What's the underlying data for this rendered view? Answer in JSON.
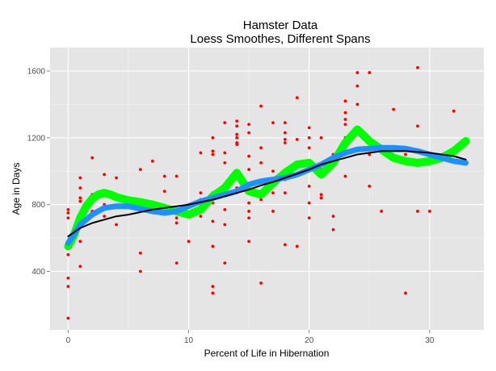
{
  "chart_data": {
    "type": "scatter",
    "title": "Hamster Data",
    "subtitle": "Loess Smoothes, Different Spans",
    "xlabel": "Percent of Life in Hibernation",
    "ylabel": "Age in Days",
    "xlim": [
      -1.5,
      34.5
    ],
    "ylim": [
      50,
      1740
    ],
    "x_ticks": [
      0,
      10,
      20,
      30
    ],
    "y_ticks": [
      400,
      800,
      1200,
      1600
    ],
    "x_tick_labels": [
      "0",
      "10",
      "20",
      "30"
    ],
    "y_tick_labels": [
      "400",
      "800",
      "1200",
      "1600"
    ],
    "grid": true,
    "legend": "none",
    "colors": {
      "panel_bg": "#e5e5e5",
      "grid_major": "#ffffff",
      "grid_minor": "#f2f2f2",
      "points": "#ff0000",
      "smooth_narrow": "#00ff00",
      "smooth_medium": "#1e90ff",
      "smooth_wide": "#000000"
    },
    "points": [
      [
        0,
        120
      ],
      [
        0,
        310
      ],
      [
        0,
        360
      ],
      [
        0,
        500
      ],
      [
        0,
        540
      ],
      [
        0,
        580
      ],
      [
        0,
        720
      ],
      [
        0,
        750
      ],
      [
        0,
        770
      ],
      [
        1,
        430
      ],
      [
        1,
        580
      ],
      [
        1,
        700
      ],
      [
        1,
        730
      ],
      [
        1,
        820
      ],
      [
        1,
        840
      ],
      [
        1,
        900
      ],
      [
        1,
        960
      ],
      [
        2,
        760
      ],
      [
        2,
        820
      ],
      [
        2,
        840
      ],
      [
        2,
        860
      ],
      [
        2,
        1080
      ],
      [
        3,
        730
      ],
      [
        3,
        800
      ],
      [
        3,
        980
      ],
      [
        4,
        680
      ],
      [
        4,
        960
      ],
      [
        6,
        400
      ],
      [
        6,
        510
      ],
      [
        6,
        1010
      ],
      [
        7,
        1060
      ],
      [
        8,
        880
      ],
      [
        8,
        970
      ],
      [
        9,
        450
      ],
      [
        9,
        690
      ],
      [
        9,
        720
      ],
      [
        9,
        970
      ],
      [
        10,
        580
      ],
      [
        10,
        750
      ],
      [
        10,
        800
      ],
      [
        11,
        730
      ],
      [
        11,
        830
      ],
      [
        11,
        870
      ],
      [
        11,
        1110
      ],
      [
        12,
        270
      ],
      [
        12,
        310
      ],
      [
        12,
        550
      ],
      [
        12,
        700
      ],
      [
        12,
        810
      ],
      [
        12,
        870
      ],
      [
        12,
        1100
      ],
      [
        12,
        1120
      ],
      [
        12,
        1200
      ],
      [
        13,
        450
      ],
      [
        13,
        680
      ],
      [
        13,
        770
      ],
      [
        13,
        1050
      ],
      [
        13,
        1110
      ],
      [
        13,
        1290
      ],
      [
        14,
        900
      ],
      [
        14,
        1160
      ],
      [
        14,
        1170
      ],
      [
        14,
        1200
      ],
      [
        14,
        1220
      ],
      [
        14,
        1270
      ],
      [
        14,
        1300
      ],
      [
        15,
        580
      ],
      [
        15,
        720
      ],
      [
        15,
        760
      ],
      [
        15,
        810
      ],
      [
        15,
        1010
      ],
      [
        15,
        1090
      ],
      [
        15,
        1230
      ],
      [
        15,
        1280
      ],
      [
        16,
        330
      ],
      [
        16,
        830
      ],
      [
        16,
        1050
      ],
      [
        16,
        1140
      ],
      [
        16,
        1390
      ],
      [
        17,
        760
      ],
      [
        17,
        870
      ],
      [
        17,
        1000
      ],
      [
        17,
        1290
      ],
      [
        18,
        560
      ],
      [
        18,
        870
      ],
      [
        18,
        950
      ],
      [
        18,
        1000
      ],
      [
        18,
        1170
      ],
      [
        18,
        1190
      ],
      [
        18,
        1230
      ],
      [
        18,
        1290
      ],
      [
        19,
        550
      ],
      [
        19,
        1190
      ],
      [
        19,
        1440
      ],
      [
        20,
        720
      ],
      [
        20,
        810
      ],
      [
        20,
        910
      ],
      [
        20,
        1030
      ],
      [
        20,
        1140
      ],
      [
        20,
        1200
      ],
      [
        20,
        1260
      ],
      [
        21,
        840
      ],
      [
        21,
        860
      ],
      [
        21,
        1010
      ],
      [
        21,
        1200
      ],
      [
        22,
        650
      ],
      [
        22,
        730
      ],
      [
        22,
        1100
      ],
      [
        23,
        970
      ],
      [
        23,
        1100
      ],
      [
        23,
        1200
      ],
      [
        23,
        1280
      ],
      [
        23,
        1310
      ],
      [
        23,
        1350
      ],
      [
        23,
        1420
      ],
      [
        24,
        1400
      ],
      [
        24,
        1510
      ],
      [
        24,
        1590
      ],
      [
        25,
        910
      ],
      [
        25,
        1100
      ],
      [
        25,
        1590
      ],
      [
        26,
        760
      ],
      [
        27,
        1370
      ],
      [
        28,
        270
      ],
      [
        28,
        1100
      ],
      [
        29,
        760
      ],
      [
        29,
        1270
      ],
      [
        29,
        1620
      ],
      [
        30,
        760
      ],
      [
        32,
        1360
      ]
    ],
    "series": [
      {
        "values": [
          [
            0,
            550
          ],
          [
            0.5,
            620
          ],
          [
            1,
            720
          ],
          [
            1.5,
            790
          ],
          [
            2,
            835
          ],
          [
            2.5,
            860
          ],
          [
            3,
            870
          ],
          [
            3.5,
            860
          ],
          [
            4,
            845
          ],
          [
            5,
            825
          ],
          [
            6,
            815
          ],
          [
            7,
            800
          ],
          [
            8,
            780
          ],
          [
            9,
            760
          ],
          [
            10,
            740
          ],
          [
            11,
            770
          ],
          [
            12,
            850
          ],
          [
            13,
            900
          ],
          [
            14,
            990
          ],
          [
            15,
            880
          ],
          [
            16,
            860
          ],
          [
            17,
            930
          ],
          [
            18,
            990
          ],
          [
            19,
            1040
          ],
          [
            20,
            1050
          ],
          [
            21,
            980
          ],
          [
            22,
            1050
          ],
          [
            23,
            1170
          ],
          [
            24,
            1250
          ],
          [
            25,
            1180
          ],
          [
            26,
            1130
          ],
          [
            27,
            1080
          ],
          [
            28,
            1060
          ],
          [
            29,
            1050
          ],
          [
            30,
            1060
          ],
          [
            31,
            1080
          ],
          [
            32,
            1120
          ],
          [
            33,
            1180
          ]
        ]
      },
      {
        "values": [
          [
            0,
            570
          ],
          [
            1,
            680
          ],
          [
            2,
            740
          ],
          [
            3,
            780
          ],
          [
            4,
            790
          ],
          [
            5,
            790
          ],
          [
            6,
            775
          ],
          [
            7,
            760
          ],
          [
            8,
            750
          ],
          [
            9,
            760
          ],
          [
            10,
            790
          ],
          [
            11,
            820
          ],
          [
            12,
            840
          ],
          [
            13,
            860
          ],
          [
            14,
            880
          ],
          [
            15,
            920
          ],
          [
            16,
            940
          ],
          [
            17,
            950
          ],
          [
            18,
            960
          ],
          [
            19,
            980
          ],
          [
            20,
            1010
          ],
          [
            21,
            1040
          ],
          [
            22,
            1080
          ],
          [
            23,
            1110
          ],
          [
            24,
            1130
          ],
          [
            25,
            1135
          ],
          [
            26,
            1140
          ],
          [
            27,
            1140
          ],
          [
            28,
            1135
          ],
          [
            29,
            1120
          ],
          [
            30,
            1100
          ],
          [
            31,
            1080
          ],
          [
            32,
            1060
          ],
          [
            33,
            1050
          ]
        ]
      },
      {
        "values": [
          [
            0,
            610
          ],
          [
            1,
            660
          ],
          [
            2,
            690
          ],
          [
            3,
            710
          ],
          [
            4,
            730
          ],
          [
            5,
            740
          ],
          [
            6,
            755
          ],
          [
            7,
            770
          ],
          [
            8,
            780
          ],
          [
            9,
            790
          ],
          [
            10,
            800
          ],
          [
            11,
            815
          ],
          [
            12,
            830
          ],
          [
            13,
            850
          ],
          [
            14,
            870
          ],
          [
            15,
            890
          ],
          [
            16,
            915
          ],
          [
            17,
            935
          ],
          [
            18,
            960
          ],
          [
            19,
            985
          ],
          [
            20,
            1010
          ],
          [
            21,
            1040
          ],
          [
            22,
            1060
          ],
          [
            23,
            1080
          ],
          [
            24,
            1100
          ],
          [
            25,
            1110
          ],
          [
            26,
            1120
          ],
          [
            27,
            1120
          ],
          [
            28,
            1120
          ],
          [
            29,
            1115
          ],
          [
            30,
            1110
          ],
          [
            31,
            1100
          ],
          [
            32,
            1090
          ],
          [
            33,
            1070
          ]
        ]
      }
    ]
  }
}
